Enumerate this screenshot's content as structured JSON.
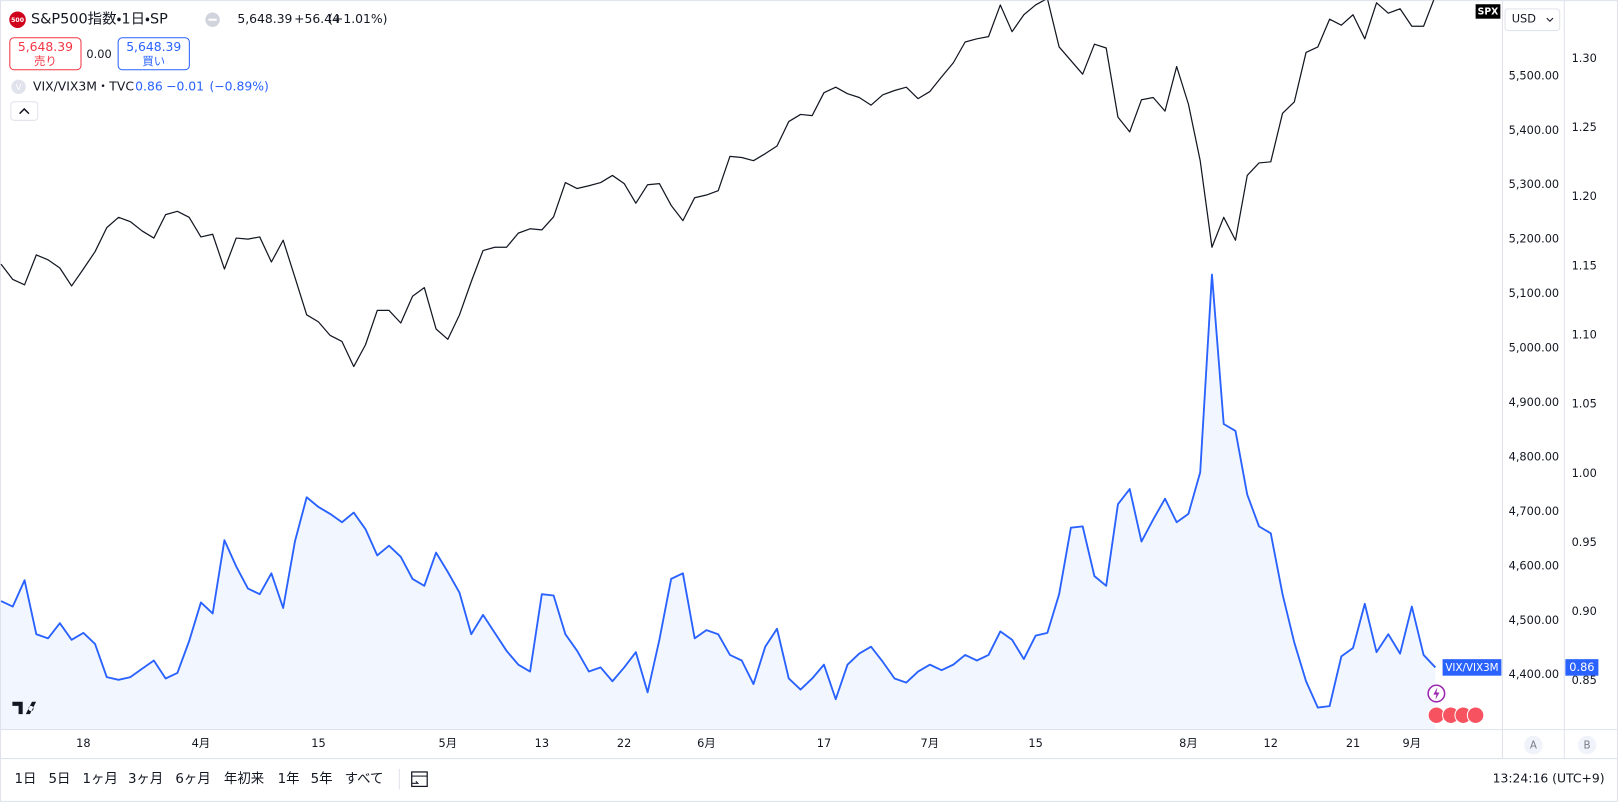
{
  "ui": {
    "icon": "500",
    "vix_icon": "V",
    "sell_price": "5,648.39",
    "sell_label": "売り",
    "spread": "0.00",
    "buy_price": "5,648.39",
    "buy_label": "買い",
    "currency": "USD",
    "scale_buttons": [
      "A",
      "B"
    ],
    "timeframes": [
      "1日",
      "5日",
      "1ヶ月",
      "3ヶ月",
      "6ヶ月",
      "年初来",
      "1年",
      "5年",
      "すべて"
    ],
    "clock": "13:24:16 (UTC+9)"
  },
  "chart_data": {
    "type": "line",
    "categories": [
      null,
      null,
      null,
      null,
      null,
      null,
      null,
      "18",
      null,
      null,
      null,
      null,
      null,
      null,
      null,
      null,
      null,
      "4月",
      null,
      null,
      null,
      null,
      null,
      null,
      null,
      null,
      null,
      "15",
      null,
      null,
      null,
      null,
      null,
      null,
      null,
      null,
      null,
      null,
      "5月",
      null,
      null,
      null,
      null,
      null,
      null,
      null,
      "13",
      null,
      null,
      null,
      null,
      null,
      null,
      "22",
      null,
      null,
      null,
      null,
      null,
      null,
      "6月",
      null,
      null,
      null,
      null,
      null,
      null,
      null,
      null,
      null,
      "17",
      null,
      null,
      null,
      null,
      null,
      null,
      null,
      null,
      "7月",
      null,
      null,
      null,
      null,
      null,
      null,
      null,
      null,
      "15",
      null,
      null,
      null,
      null,
      null,
      null,
      null,
      null,
      null,
      null,
      null,
      null,
      "8月",
      null,
      null,
      null,
      null,
      null,
      null,
      "12",
      null,
      null,
      null,
      null,
      null,
      null,
      "21",
      null,
      null,
      null,
      null,
      "9月",
      null,
      null
    ],
    "series": [
      {
        "name": "S&P500指数・1日・SP",
        "tag": "SPX",
        "color": "#131722",
        "quote": {
          "last": "5,648.39",
          "change": "+56.44",
          "change_pct": "(+1.01%)"
        },
        "values": [
          5155,
          5127,
          5117,
          5172,
          5163,
          5148,
          5115,
          5146,
          5178,
          5222,
          5241,
          5233,
          5216,
          5203,
          5246,
          5252,
          5241,
          5205,
          5210,
          5146,
          5203,
          5201,
          5205,
          5159,
          5199,
          5131,
          5062,
          5049,
          5024,
          5013,
          4967,
          5007,
          5070,
          5070,
          5047,
          5096,
          5112,
          5036,
          5017,
          5062,
          5123,
          5180,
          5186,
          5186,
          5212,
          5220,
          5218,
          5242,
          5305,
          5294,
          5299,
          5305,
          5318,
          5303,
          5267,
          5301,
          5303,
          5263,
          5235,
          5277,
          5282,
          5290,
          5353,
          5351,
          5345,
          5358,
          5372,
          5417,
          5430,
          5428,
          5470,
          5480,
          5468,
          5461,
          5447,
          5466,
          5474,
          5480,
          5459,
          5472,
          5499,
          5525,
          5563,
          5569,
          5573,
          5631,
          5582,
          5613,
          5631,
          5643,
          5554,
          5529,
          5504,
          5559,
          5552,
          5425,
          5398,
          5457,
          5461,
          5436,
          5518,
          5449,
          5345,
          5186,
          5241,
          5199,
          5318,
          5341,
          5343,
          5432,
          5453,
          5544,
          5554,
          5605,
          5594,
          5613,
          5569,
          5635,
          5616,
          5624,
          5592,
          5592,
          5648
        ]
      },
      {
        "name": "VIX/VIX3M・TVC",
        "tag": "VIX/VIX3M",
        "color": "#2962ff",
        "axis": "y2",
        "area": true,
        "quote": {
          "last": "0.86",
          "change": "−0.01",
          "change_pct": "(−0.89%)"
        },
        "values": [
          0.908,
          0.904,
          0.923,
          0.884,
          0.881,
          0.892,
          0.88,
          0.885,
          0.877,
          0.853,
          0.851,
          0.853,
          0.859,
          0.865,
          0.852,
          0.856,
          0.879,
          0.907,
          0.899,
          0.952,
          0.933,
          0.917,
          0.913,
          0.928,
          0.903,
          0.951,
          0.983,
          0.976,
          0.971,
          0.965,
          0.972,
          0.96,
          0.941,
          0.948,
          0.94,
          0.924,
          0.919,
          0.943,
          0.929,
          0.914,
          0.884,
          0.898,
          0.885,
          0.872,
          0.862,
          0.857,
          0.913,
          0.912,
          0.884,
          0.872,
          0.857,
          0.86,
          0.85,
          0.86,
          0.871,
          0.842,
          0.88,
          0.924,
          0.928,
          0.881,
          0.887,
          0.884,
          0.869,
          0.865,
          0.848,
          0.875,
          0.888,
          0.852,
          0.844,
          0.852,
          0.862,
          0.837,
          0.862,
          0.87,
          0.875,
          0.864,
          0.852,
          0.849,
          0.857,
          0.862,
          0.858,
          0.862,
          0.869,
          0.865,
          0.869,
          0.886,
          0.88,
          0.866,
          0.883,
          0.885,
          0.913,
          0.961,
          0.962,
          0.926,
          0.919,
          0.978,
          0.989,
          0.951,
          0.967,
          0.982,
          0.965,
          0.971,
          1.001,
          1.144,
          1.036,
          1.031,
          0.985,
          0.962,
          0.957,
          0.913,
          0.878,
          0.85,
          0.831,
          0.832,
          0.868,
          0.874,
          0.906,
          0.871,
          0.884,
          0.87,
          0.904,
          0.869,
          0.86
        ]
      }
    ],
    "ylim": [
      4300,
      5640
    ],
    "yticks": [
      {
        "value": 4400,
        "label": "4,400.00"
      },
      {
        "value": 4500,
        "label": "4,500.00"
      },
      {
        "value": 4600,
        "label": "4,600.00"
      },
      {
        "value": 4700,
        "label": "4,700.00"
      },
      {
        "value": 4800,
        "label": "4,800.00"
      },
      {
        "value": 4900,
        "label": "4,900.00"
      },
      {
        "value": 5000,
        "label": "5,000.00"
      },
      {
        "value": 5100,
        "label": "5,100.00"
      },
      {
        "value": 5200,
        "label": "5,200.00"
      },
      {
        "value": 5300,
        "label": "5,300.00"
      },
      {
        "value": 5400,
        "label": "5,400.00"
      },
      {
        "value": 5500,
        "label": "5,500.00"
      }
    ],
    "y2lim": [
      0.815,
      1.3425
    ],
    "y2ticks": [
      0.85,
      {
        "value": 0.9,
        "label": "0.90"
      },
      0.95,
      {
        "value": 1.0,
        "label": "1.00"
      },
      1.05,
      {
        "value": 1.1,
        "label": "1.10"
      },
      1.15,
      {
        "value": 1.2,
        "label": "1.20"
      },
      1.25,
      {
        "value": 1.3,
        "label": "1.30"
      }
    ],
    "grid": false
  }
}
